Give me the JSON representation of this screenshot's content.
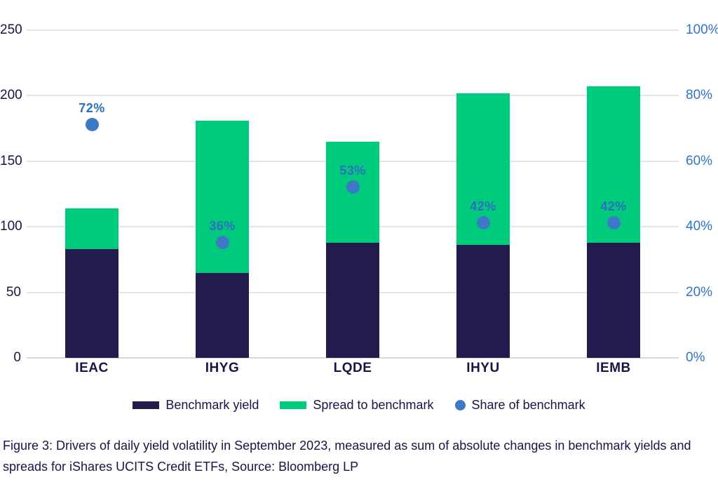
{
  "figure": {
    "caption": "Figure 3: Drivers of daily yield volatility in September 2023, measured as sum of absolute changes in benchmark yields and spreads for iShares UCITS Credit ETFs, Source: Bloomberg LP"
  },
  "colors": {
    "benchmark_yield": "#221b4d",
    "spread_to_benchmark": "#00ca7c",
    "share_of_benchmark": "#3d7ac6",
    "left_axis_text": "#1a1446",
    "right_axis_text": "#2e74c8",
    "point_label_text": "#2e6fc0",
    "gridline": "#e4e4e4",
    "baseline": "#d9d9d9",
    "background": "#ffffff"
  },
  "chart_data": {
    "type": "bar",
    "subtype": "stacked-bars-with-scatter-overlay",
    "title": "",
    "categories": [
      "IEAC",
      "IHYG",
      "LQDE",
      "IHYU",
      "IEMB"
    ],
    "series": [
      {
        "name": "Benchmark yield",
        "type": "bar",
        "stack": "total",
        "axis": "left",
        "values": [
          83,
          65,
          88,
          86,
          88
        ]
      },
      {
        "name": "Spread to benchmark",
        "type": "bar",
        "stack": "total",
        "axis": "left",
        "values": [
          31,
          116,
          77,
          116,
          119
        ]
      },
      {
        "name": "Share of benchmark",
        "type": "scatter",
        "axis": "right",
        "values": [
          72,
          36,
          53,
          42,
          42
        ],
        "point_labels": [
          "72%",
          "36%",
          "53%",
          "42%",
          "42%"
        ]
      }
    ],
    "stacked_totals": [
      114,
      181,
      165,
      202,
      207
    ],
    "left_axis": {
      "range": [
        0,
        250
      ],
      "tick_values": [
        0,
        50,
        100,
        150,
        200,
        250
      ],
      "tick_labels": [
        "0",
        "50",
        "100",
        "150",
        "200",
        "250"
      ]
    },
    "right_axis": {
      "range": [
        0,
        100
      ],
      "tick_values": [
        0,
        20,
        40,
        60,
        80,
        100
      ],
      "tick_labels": [
        "0%",
        "20%",
        "40%",
        "60%",
        "80%",
        "100%"
      ]
    },
    "grid": "horizontal",
    "legend_position": "bottom"
  },
  "legend": {
    "items": [
      {
        "label": "Benchmark yield",
        "marker": "rect"
      },
      {
        "label": "Spread to benchmark",
        "marker": "rect"
      },
      {
        "label": "Share of benchmark",
        "marker": "circle"
      }
    ]
  }
}
